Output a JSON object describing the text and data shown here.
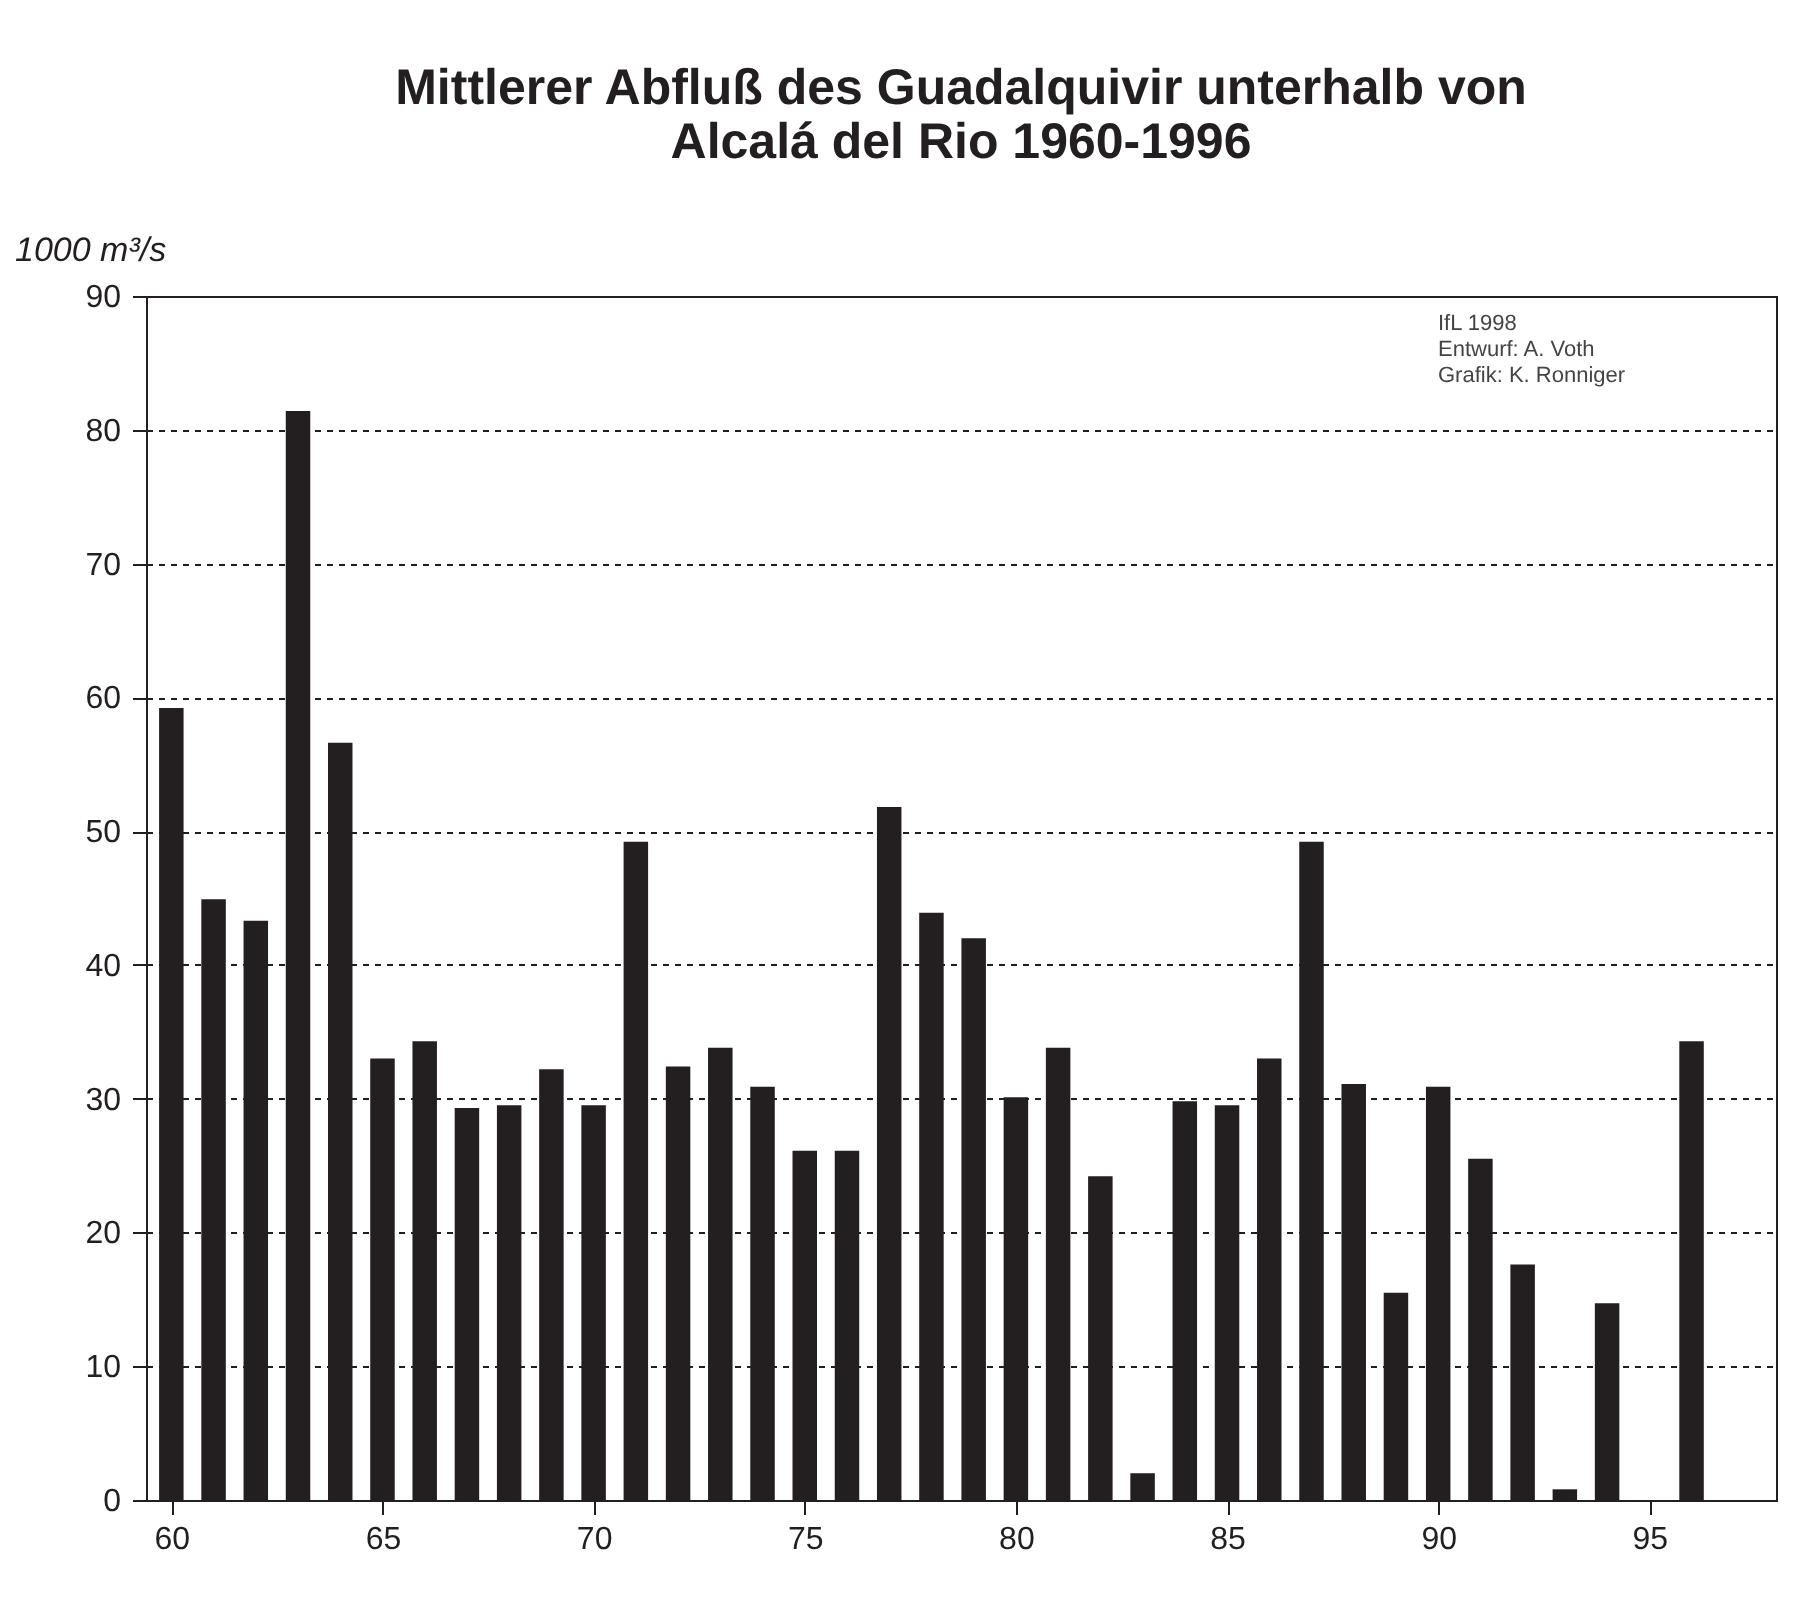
{
  "chart_data": {
    "type": "bar",
    "title": "Mittlerer Abfluß des Guadalquivir unterhalb von Alcalá del Rio 1960-1996",
    "ylabel": "1000 m³/s",
    "x": [
      60,
      61,
      62,
      63,
      64,
      65,
      66,
      67,
      68,
      69,
      70,
      71,
      72,
      73,
      74,
      75,
      76,
      77,
      78,
      79,
      80,
      81,
      82,
      83,
      84,
      85,
      86,
      87,
      88,
      89,
      90,
      91,
      92,
      93,
      94,
      95,
      96
    ],
    "values": [
      59.2,
      44.9,
      43.3,
      81.4,
      56.6,
      33.0,
      34.3,
      29.3,
      29.5,
      32.2,
      29.5,
      49.2,
      32.4,
      33.8,
      30.9,
      26.1,
      26.1,
      51.8,
      43.9,
      42.0,
      30.1,
      33.8,
      24.2,
      2.0,
      29.8,
      29.5,
      33.0,
      49.2,
      31.1,
      15.5,
      30.9,
      25.5,
      17.6,
      0.8,
      14.7,
      null,
      34.3
    ],
    "color": "#231f20",
    "xlim": [
      59.4,
      98
    ],
    "xticks": [
      60,
      65,
      70,
      75,
      80,
      85,
      90,
      95
    ],
    "ylim": [
      0,
      90
    ],
    "yticks": [
      0,
      10,
      20,
      30,
      40,
      50,
      60,
      70,
      80,
      90
    ],
    "grid": "y",
    "annotations": [
      "IfL 1998",
      "Entwurf: A. Voth",
      "Grafik: K. Ronniger"
    ]
  }
}
